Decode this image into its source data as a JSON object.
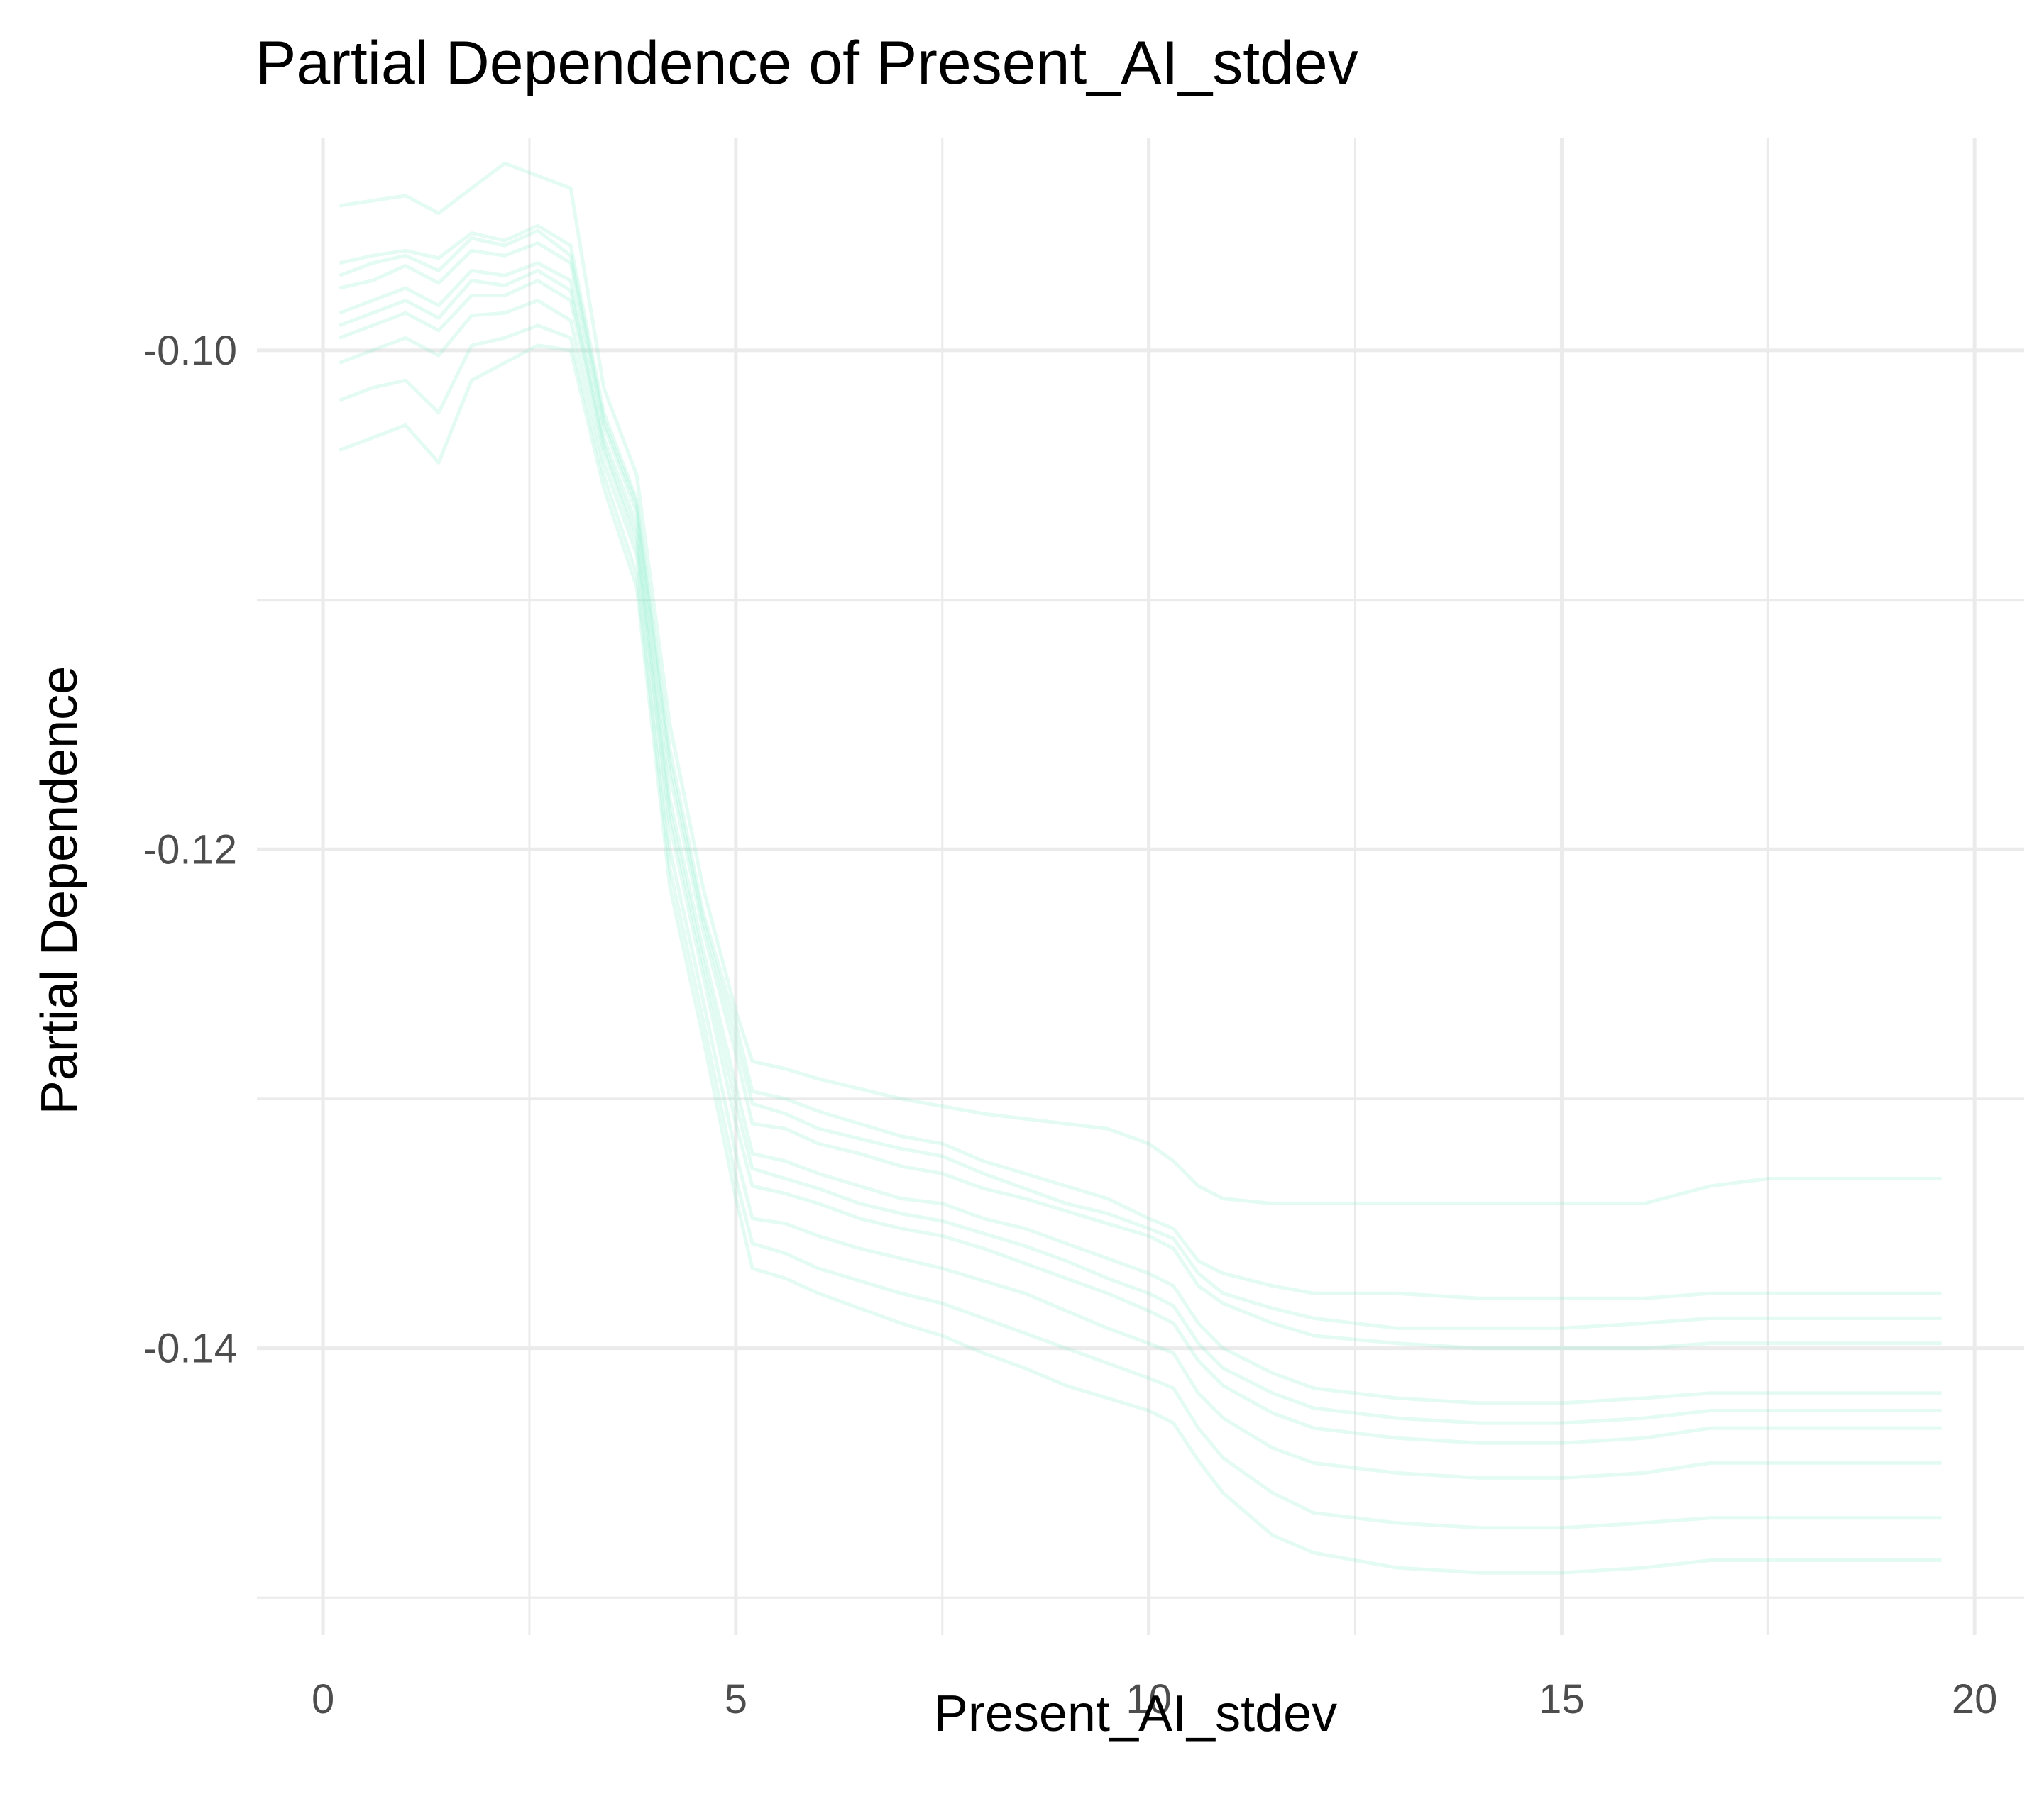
{
  "chart_data": {
    "type": "line",
    "title": "Partial Dependence of Present_AI_stdev",
    "xlabel": "Present_AI_stdev",
    "ylabel": "Partial Dependence",
    "xlim": [
      -0.8,
      20.6
    ],
    "ylim": [
      -0.1515,
      -0.0915
    ],
    "x_ticks": [
      0,
      5,
      10,
      15,
      20
    ],
    "x_tick_labels": [
      "0",
      "5",
      "10",
      "15",
      "20"
    ],
    "y_ticks": [
      -0.1,
      -0.12,
      -0.14
    ],
    "y_tick_labels": [
      "-0.10",
      "-0.12",
      "-0.14"
    ],
    "grid": true,
    "line_color": "#7fefc8",
    "x": [
      0.2,
      0.6,
      1.0,
      1.4,
      1.8,
      2.2,
      2.6,
      3.0,
      3.4,
      3.8,
      4.2,
      4.6,
      5.0,
      5.2,
      5.6,
      6.0,
      6.5,
      7.0,
      7.5,
      8.0,
      8.5,
      9.0,
      9.5,
      10.0,
      10.3,
      10.6,
      10.9,
      11.5,
      12.0,
      13.0,
      14.0,
      15.0,
      16.0,
      16.8,
      17.5,
      18.0,
      19.0,
      19.6
    ],
    "series": [
      {
        "values": [
          -0.0965,
          -0.0962,
          -0.096,
          -0.0963,
          -0.0953,
          -0.0956,
          -0.095,
          -0.0958,
          -0.1025,
          -0.106,
          -0.116,
          -0.1225,
          -0.127,
          -0.1297,
          -0.13,
          -0.1305,
          -0.131,
          -0.1315,
          -0.1318,
          -0.1325,
          -0.133,
          -0.1335,
          -0.134,
          -0.1348,
          -0.1352,
          -0.1365,
          -0.137,
          -0.1375,
          -0.1378,
          -0.1378,
          -0.138,
          -0.138,
          -0.138,
          -0.1378,
          -0.1378,
          -0.1378,
          -0.1378,
          -0.1378
        ]
      },
      {
        "values": [
          -0.0975,
          -0.0972,
          -0.0966,
          -0.0973,
          -0.096,
          -0.0962,
          -0.0957,
          -0.0965,
          -0.103,
          -0.1065,
          -0.117,
          -0.1232,
          -0.1282,
          -0.131,
          -0.1312,
          -0.1318,
          -0.1322,
          -0.1327,
          -0.133,
          -0.1336,
          -0.134,
          -0.1345,
          -0.135,
          -0.1355,
          -0.136,
          -0.1375,
          -0.1382,
          -0.139,
          -0.1395,
          -0.1398,
          -0.14,
          -0.14,
          -0.14,
          -0.1398,
          -0.1398,
          -0.1398,
          -0.1398,
          -0.1398
        ]
      },
      {
        "values": [
          -0.0985,
          -0.098,
          -0.0975,
          -0.0982,
          -0.0968,
          -0.097,
          -0.0965,
          -0.0972,
          -0.1035,
          -0.107,
          -0.118,
          -0.124,
          -0.1295,
          -0.1322,
          -0.1325,
          -0.133,
          -0.1335,
          -0.134,
          -0.1342,
          -0.1348,
          -0.1352,
          -0.1358,
          -0.1364,
          -0.137,
          -0.1375,
          -0.139,
          -0.14,
          -0.141,
          -0.1416,
          -0.142,
          -0.1422,
          -0.1422,
          -0.142,
          -0.1418,
          -0.1418,
          -0.1418,
          -0.1418,
          -0.1418
        ]
      },
      {
        "values": [
          -0.0995,
          -0.099,
          -0.0985,
          -0.0992,
          -0.0978,
          -0.0978,
          -0.0972,
          -0.098,
          -0.104,
          -0.1078,
          -0.119,
          -0.125,
          -0.131,
          -0.1335,
          -0.1338,
          -0.1342,
          -0.1348,
          -0.1352,
          -0.1355,
          -0.136,
          -0.1366,
          -0.1372,
          -0.1378,
          -0.1385,
          -0.139,
          -0.1405,
          -0.1415,
          -0.1426,
          -0.1432,
          -0.1436,
          -0.1438,
          -0.1438,
          -0.1436,
          -0.1432,
          -0.1432,
          -0.1432,
          -0.1432,
          -0.1432
        ]
      },
      {
        "values": [
          -0.1005,
          -0.1,
          -0.0995,
          -0.1002,
          -0.0986,
          -0.0985,
          -0.098,
          -0.0988,
          -0.1045,
          -0.1082,
          -0.12,
          -0.126,
          -0.1322,
          -0.1348,
          -0.135,
          -0.1355,
          -0.136,
          -0.1364,
          -0.1368,
          -0.1373,
          -0.1378,
          -0.1385,
          -0.1392,
          -0.1398,
          -0.1402,
          -0.1418,
          -0.1428,
          -0.144,
          -0.1446,
          -0.145,
          -0.1452,
          -0.1452,
          -0.145,
          -0.1446,
          -0.1446,
          -0.1446,
          -0.1446,
          -0.1446
        ]
      },
      {
        "values": [
          -0.104,
          -0.1035,
          -0.103,
          -0.1045,
          -0.1012,
          -0.1005,
          -0.0998,
          -0.1,
          -0.1055,
          -0.1095,
          -0.1215,
          -0.1275,
          -0.134,
          -0.1368,
          -0.1372,
          -0.1378,
          -0.1384,
          -0.139,
          -0.1395,
          -0.1402,
          -0.1408,
          -0.1415,
          -0.142,
          -0.1425,
          -0.143,
          -0.1445,
          -0.1458,
          -0.1475,
          -0.1482,
          -0.1488,
          -0.149,
          -0.149,
          -0.1488,
          -0.1485,
          -0.1485,
          -0.1485,
          -0.1485,
          -0.1485
        ]
      },
      {
        "values": [
          -0.0942,
          -0.094,
          -0.0938,
          -0.0945,
          -0.0935,
          -0.0925,
          -0.093,
          -0.0935,
          -0.1015,
          -0.105,
          -0.115,
          -0.1215,
          -0.1265,
          -0.1285,
          -0.1288,
          -0.1292,
          -0.1296,
          -0.13,
          -0.1303,
          -0.1306,
          -0.1308,
          -0.131,
          -0.1312,
          -0.1318,
          -0.1325,
          -0.1335,
          -0.134,
          -0.1342,
          -0.1342,
          -0.1342,
          -0.1342,
          -0.1342,
          -0.1342,
          -0.1335,
          -0.1332,
          -0.1332,
          -0.1332,
          -0.1332
        ]
      },
      {
        "values": [
          -0.097,
          -0.0965,
          -0.0962,
          -0.0968,
          -0.0955,
          -0.0958,
          -0.0952,
          -0.0962,
          -0.1028,
          -0.1062,
          -0.1165,
          -0.1228,
          -0.1276,
          -0.1302,
          -0.1306,
          -0.1312,
          -0.1316,
          -0.132,
          -0.1323,
          -0.133,
          -0.1336,
          -0.1342,
          -0.1346,
          -0.1352,
          -0.1356,
          -0.137,
          -0.1378,
          -0.1384,
          -0.1388,
          -0.1392,
          -0.1392,
          -0.1392,
          -0.139,
          -0.1388,
          -0.1388,
          -0.1388,
          -0.1388,
          -0.1388
        ]
      },
      {
        "values": [
          -0.099,
          -0.0985,
          -0.098,
          -0.0987,
          -0.0972,
          -0.0974,
          -0.0968,
          -0.0976,
          -0.1038,
          -0.1074,
          -0.1185,
          -0.1245,
          -0.1302,
          -0.1328,
          -0.1332,
          -0.1336,
          -0.1342,
          -0.1346,
          -0.1349,
          -0.1354,
          -0.1359,
          -0.1365,
          -0.1372,
          -0.1378,
          -0.1383,
          -0.1398,
          -0.1408,
          -0.1418,
          -0.1424,
          -0.1428,
          -0.143,
          -0.143,
          -0.1428,
          -0.1425,
          -0.1425,
          -0.1425,
          -0.1425,
          -0.1425
        ]
      },
      {
        "values": [
          -0.102,
          -0.1015,
          -0.1012,
          -0.1025,
          -0.0998,
          -0.0995,
          -0.099,
          -0.0995,
          -0.105,
          -0.109,
          -0.1208,
          -0.1268,
          -0.1332,
          -0.1358,
          -0.1362,
          -0.1368,
          -0.1373,
          -0.1378,
          -0.1382,
          -0.1388,
          -0.1394,
          -0.14,
          -0.1406,
          -0.1412,
          -0.1416,
          -0.1432,
          -0.1444,
          -0.1458,
          -0.1466,
          -0.147,
          -0.1472,
          -0.1472,
          -0.147,
          -0.1468,
          -0.1468,
          -0.1468,
          -0.1468,
          -0.1468
        ]
      }
    ]
  }
}
